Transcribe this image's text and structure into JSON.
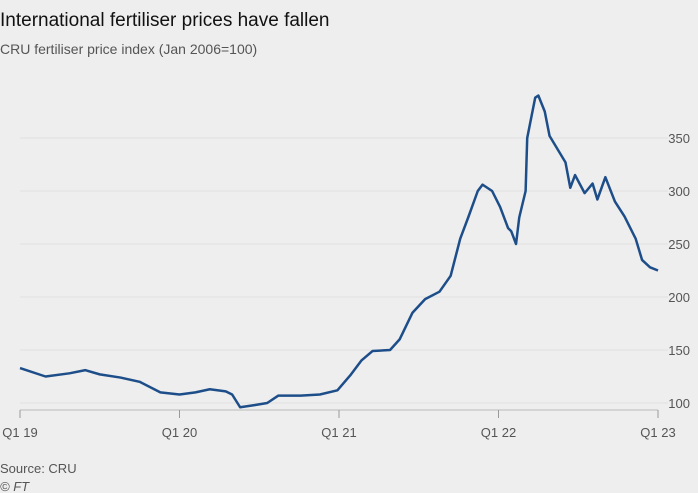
{
  "chart_data": {
    "type": "line",
    "title": "International fertiliser prices have fallen",
    "subtitle": "CRU fertiliser price index (Jan 2006=100)",
    "source": "Source: CRU",
    "credit": "© FT",
    "x": [
      2019.0,
      2019.16,
      2019.31,
      2019.41,
      2019.5,
      2019.63,
      2019.75,
      2019.88,
      2020.0,
      2020.1,
      2020.19,
      2020.29,
      2020.33,
      2020.38,
      2020.47,
      2020.55,
      2020.62,
      2020.76,
      2020.88,
      2020.99,
      2021.07,
      2021.14,
      2021.21,
      2021.32,
      2021.38,
      2021.46,
      2021.54,
      2021.63,
      2021.7,
      2021.76,
      2021.81,
      2021.87,
      2021.9,
      2021.96,
      2022.01,
      2022.06,
      2022.08,
      2022.11,
      2022.13,
      2022.17,
      2022.18,
      2022.23,
      2022.25,
      2022.29,
      2022.32,
      2022.42,
      2022.45,
      2022.48,
      2022.54,
      2022.59,
      2022.62,
      2022.67,
      2022.73,
      2022.79,
      2022.86,
      2022.9,
      2022.95,
      2023.0
    ],
    "series": [
      {
        "name": "CRU fertiliser price index",
        "color": "#1d4e89",
        "values": [
          133,
          125,
          128,
          131,
          127,
          124,
          120,
          110,
          108,
          110,
          113,
          111,
          108,
          96,
          98,
          100,
          107,
          107,
          108,
          112,
          126,
          140,
          149,
          150,
          160,
          185,
          198,
          205,
          220,
          255,
          275,
          300,
          306,
          300,
          285,
          265,
          262,
          250,
          275,
          300,
          350,
          388,
          390,
          375,
          352,
          327,
          303,
          315,
          298,
          307,
          292,
          313,
          290,
          276,
          255,
          235,
          228,
          225
        ]
      }
    ],
    "xlim": [
      2019,
      2023
    ],
    "xticks": [
      {
        "value": 2019,
        "label": "Q1 19"
      },
      {
        "value": 2020,
        "label": "Q1 20"
      },
      {
        "value": 2021,
        "label": "Q1 21"
      },
      {
        "value": 2022,
        "label": "Q1 22"
      },
      {
        "value": 2023,
        "label": "Q1 23"
      }
    ],
    "ylim": [
      90,
      400
    ],
    "yticks": [
      100,
      150,
      200,
      250,
      300,
      350
    ],
    "grid": true
  }
}
